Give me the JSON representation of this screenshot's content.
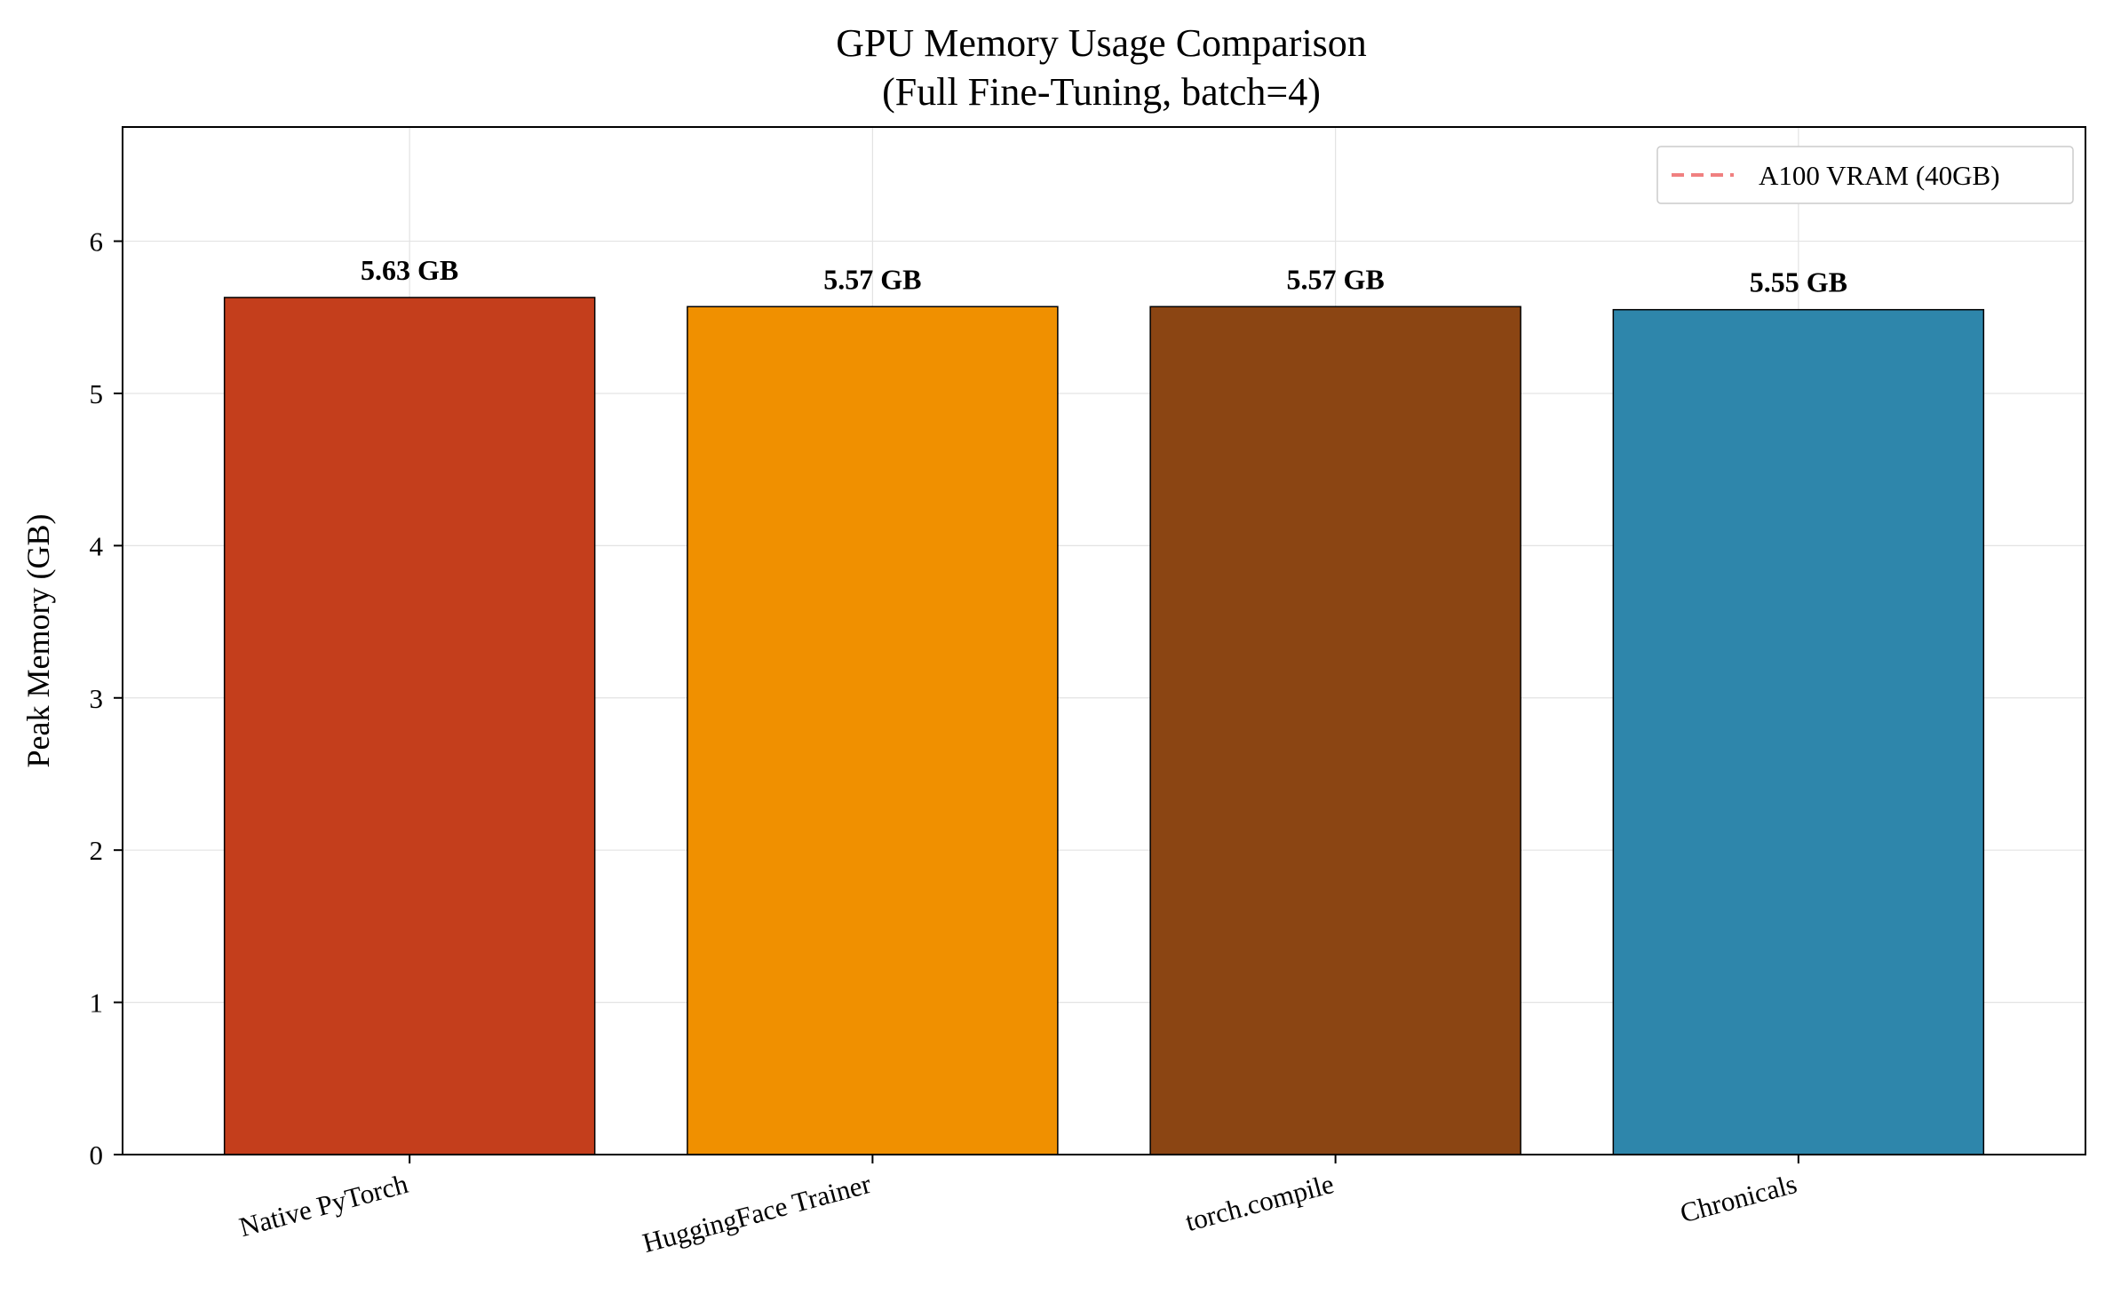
{
  "chart_data": {
    "type": "bar",
    "title": "GPU Memory Usage Comparison",
    "subtitle": "(Full Fine-Tuning, batch=4)",
    "xlabel": "",
    "ylabel": "Peak Memory (GB)",
    "categories": [
      "Native PyTorch",
      "HuggingFace Trainer",
      "torch.compile",
      "Chronicals"
    ],
    "values": [
      5.63,
      5.57,
      5.57,
      5.55
    ],
    "value_labels": [
      "5.63 GB",
      "5.57 GB",
      "5.57 GB",
      "5.55 GB"
    ],
    "colors": [
      "#c43e1c",
      "#f09000",
      "#8b4513",
      "#2e86ab"
    ],
    "ylim": [
      0,
      6.75
    ],
    "yticks": [
      0,
      1,
      2,
      3,
      4,
      5,
      6
    ],
    "grid": true,
    "legend": {
      "placement": "top-right",
      "entries": [
        {
          "label": "A100 VRAM (40GB)",
          "style": "dashed-line",
          "color": "#f08080",
          "value": 40
        }
      ]
    }
  }
}
